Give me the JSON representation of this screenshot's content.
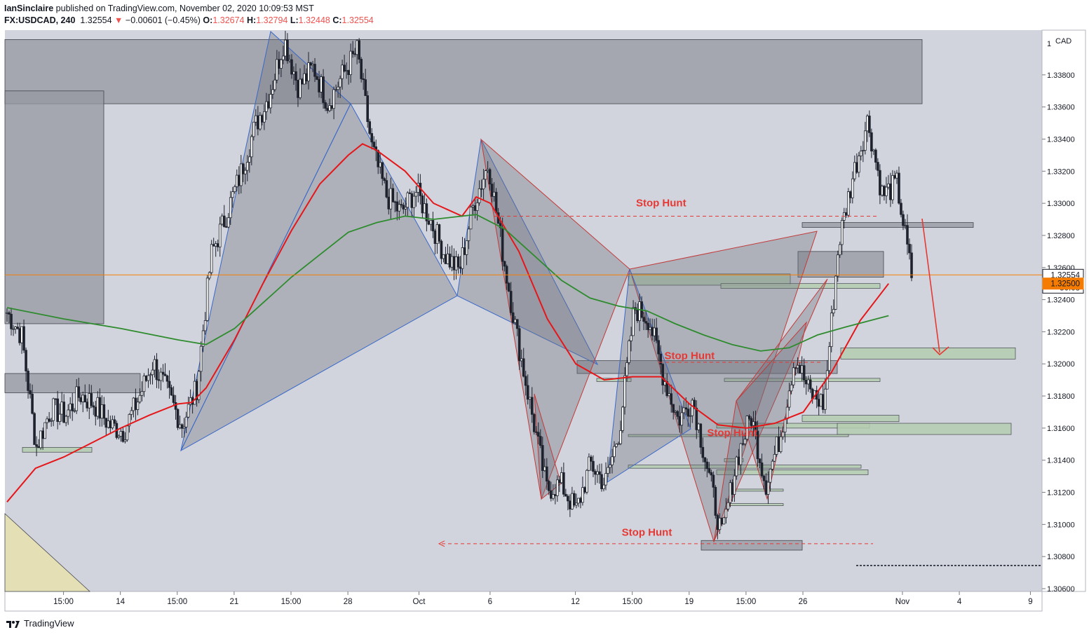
{
  "header": {
    "publisher": "IanSinclaire",
    "published_text": "published on TradingView.com, November 02, 2020 10:09:53 MST",
    "symbol": "FX:USDCAD, 240",
    "last": "1.32554",
    "change": "−0.00601 (−0.45%)",
    "o_label": "O:",
    "o": "1.32674",
    "h_label": "H:",
    "h": "1.32794",
    "l_label": "L:",
    "l": "1.32448",
    "c_label": "C:",
    "c": "1.32554"
  },
  "footer": {
    "brand": "TradingView"
  },
  "colors": {
    "background": "#d1d4dc",
    "panel": "#ffffff",
    "candle": "#1e222d",
    "ema_fast": "#e5171a",
    "ema_slow": "#2e8b2e",
    "zone_grey": "#9598a1",
    "zone_green": "#b5cdb0",
    "pattern_fill": "#6e717c",
    "annotation_red": "#e53935",
    "price_line": "#f57c00",
    "label_last_bg": "#ffffff",
    "label_level_bg": "#f57c00"
  },
  "chart_data": {
    "type": "candlestick",
    "symbol": "FX:USDCAD",
    "timeframe": "240",
    "yaxis": {
      "unit": "CAD",
      "ylim": [
        1.3055,
        1.3402
      ],
      "ticks": [
        "1.30600",
        "1.30800",
        "1.31000",
        "1.31200",
        "1.31400",
        "1.31600",
        "1.31800",
        "1.32000",
        "1.32200",
        "1.32400",
        "1.32600",
        "1.32800",
        "1.33000",
        "1.33200",
        "1.33400",
        "1.33600",
        "1.33800"
      ],
      "top_tick_label": "1",
      "labels": [
        {
          "text": "1.32554",
          "value": 1.32554,
          "style": "last"
        },
        {
          "text": "50:08",
          "value": 1.3246,
          "style": "timer"
        },
        {
          "text": "1.32500",
          "value": 1.325,
          "style": "level"
        }
      ]
    },
    "xaxis": {
      "ticks": [
        {
          "label": "15:00",
          "t": 2
        },
        {
          "label": "14",
          "t": 6
        },
        {
          "label": "15:00",
          "t": 10
        },
        {
          "label": "21",
          "t": 14
        },
        {
          "label": "15:00",
          "t": 18
        },
        {
          "label": "28",
          "t": 22
        },
        {
          "label": "Oct",
          "t": 27
        },
        {
          "label": "6",
          "t": 32
        },
        {
          "label": "12",
          "t": 38
        },
        {
          "label": "15:00",
          "t": 42
        },
        {
          "label": "19",
          "t": 46
        },
        {
          "label": "15:00",
          "t": 50
        },
        {
          "label": "26",
          "t": 54
        },
        {
          "label": "Nov",
          "t": 61
        },
        {
          "label": "4",
          "t": 65
        },
        {
          "label": "9",
          "t": 70
        }
      ],
      "tlim": [
        0,
        72
      ]
    },
    "price_series": [
      [
        0,
        1.3232
      ],
      [
        1,
        1.3218
      ],
      [
        2,
        1.3148
      ],
      [
        3,
        1.3172
      ],
      [
        4,
        1.3168
      ],
      [
        5,
        1.3181
      ],
      [
        6,
        1.3175
      ],
      [
        7,
        1.3162
      ],
      [
        8,
        1.3158
      ],
      [
        9,
        1.3178
      ],
      [
        10,
        1.3201
      ],
      [
        11,
        1.3182
      ],
      [
        12,
        1.3162
      ],
      [
        13,
        1.3185
      ],
      [
        14,
        1.3268
      ],
      [
        15,
        1.3292
      ],
      [
        16,
        1.3318
      ],
      [
        17,
        1.3348
      ],
      [
        18,
        1.3368
      ],
      [
        19,
        1.3402
      ],
      [
        20,
        1.3372
      ],
      [
        21,
        1.3385
      ],
      [
        22,
        1.3362
      ],
      [
        23,
        1.338
      ],
      [
        24,
        1.3395
      ],
      [
        25,
        1.3335
      ],
      [
        26,
        1.3305
      ],
      [
        27,
        1.3294
      ],
      [
        28,
        1.3308
      ],
      [
        29,
        1.329
      ],
      [
        30,
        1.3268
      ],
      [
        31,
        1.3258
      ],
      [
        32,
        1.33
      ],
      [
        33,
        1.3325
      ],
      [
        34,
        1.3268
      ],
      [
        35,
        1.3215
      ],
      [
        36,
        1.3168
      ],
      [
        37,
        1.3122
      ],
      [
        38,
        1.3125
      ],
      [
        39,
        1.3108
      ],
      [
        40,
        1.3138
      ],
      [
        41,
        1.3125
      ],
      [
        42,
        1.316
      ],
      [
        43,
        1.3235
      ],
      [
        44,
        1.3228
      ],
      [
        45,
        1.3192
      ],
      [
        46,
        1.3165
      ],
      [
        47,
        1.3178
      ],
      [
        48,
        1.3135
      ],
      [
        49,
        1.3092
      ],
      [
        50,
        1.314
      ],
      [
        51,
        1.3168
      ],
      [
        52,
        1.3125
      ],
      [
        53,
        1.3155
      ],
      [
        54,
        1.3205
      ],
      [
        55,
        1.3182
      ],
      [
        56,
        1.3175
      ],
      [
        57,
        1.3275
      ],
      [
        58,
        1.3318
      ],
      [
        59,
        1.3352
      ],
      [
        60,
        1.3305
      ],
      [
        61,
        1.3312
      ],
      [
        62,
        1.3255
      ]
    ],
    "series": [
      {
        "name": "",
        "color": "#e5171a",
        "points": [
          [
            0,
            1.3114
          ],
          [
            2,
            1.3135
          ],
          [
            4,
            1.3142
          ],
          [
            6,
            1.3151
          ],
          [
            8,
            1.316
          ],
          [
            10,
            1.3168
          ],
          [
            12,
            1.3175
          ],
          [
            13,
            1.3176
          ],
          [
            14,
            1.3185
          ],
          [
            16,
            1.3215
          ],
          [
            18,
            1.325
          ],
          [
            20,
            1.3283
          ],
          [
            22,
            1.3312
          ],
          [
            24,
            1.333
          ],
          [
            25,
            1.3337
          ],
          [
            26,
            1.3333
          ],
          [
            28,
            1.332
          ],
          [
            30,
            1.33
          ],
          [
            32,
            1.3292
          ],
          [
            33,
            1.3304
          ],
          [
            34,
            1.33
          ],
          [
            36,
            1.327
          ],
          [
            38,
            1.3228
          ],
          [
            40,
            1.32
          ],
          [
            42,
            1.319
          ],
          [
            44,
            1.3192
          ],
          [
            46,
            1.3192
          ],
          [
            48,
            1.3175
          ],
          [
            50,
            1.3162
          ],
          [
            52,
            1.316
          ],
          [
            54,
            1.3163
          ],
          [
            56,
            1.317
          ],
          [
            58,
            1.3195
          ],
          [
            60,
            1.3227
          ],
          [
            62,
            1.325
          ]
        ]
      },
      {
        "name": "",
        "color": "#2e8b2e",
        "points": [
          [
            0,
            1.3235
          ],
          [
            4,
            1.3228
          ],
          [
            8,
            1.3222
          ],
          [
            12,
            1.3215
          ],
          [
            14,
            1.3212
          ],
          [
            16,
            1.3222
          ],
          [
            18,
            1.3238
          ],
          [
            20,
            1.3254
          ],
          [
            22,
            1.3268
          ],
          [
            24,
            1.3282
          ],
          [
            26,
            1.3288
          ],
          [
            28,
            1.3292
          ],
          [
            30,
            1.329
          ],
          [
            32,
            1.3292
          ],
          [
            33,
            1.3293
          ],
          [
            35,
            1.3284
          ],
          [
            37,
            1.3268
          ],
          [
            39,
            1.3252
          ],
          [
            41,
            1.3241
          ],
          [
            43,
            1.3236
          ],
          [
            45,
            1.3233
          ],
          [
            47,
            1.3225
          ],
          [
            49,
            1.3218
          ],
          [
            51,
            1.3212
          ],
          [
            53,
            1.3208
          ],
          [
            55,
            1.321
          ],
          [
            57,
            1.3218
          ],
          [
            59,
            1.3223
          ],
          [
            62,
            1.323
          ]
        ]
      }
    ],
    "annotations": [
      {
        "text": "Stop Hunt",
        "t": 46,
        "value": 1.3298
      },
      {
        "text": "Stop Hunt",
        "t": 48,
        "value": 1.3203
      },
      {
        "text": "Stop Hunt",
        "t": 51,
        "value": 1.3155
      },
      {
        "text": "Stop Hunt",
        "t": 45,
        "value": 1.3093
      }
    ],
    "grid": false,
    "legend": "none"
  }
}
